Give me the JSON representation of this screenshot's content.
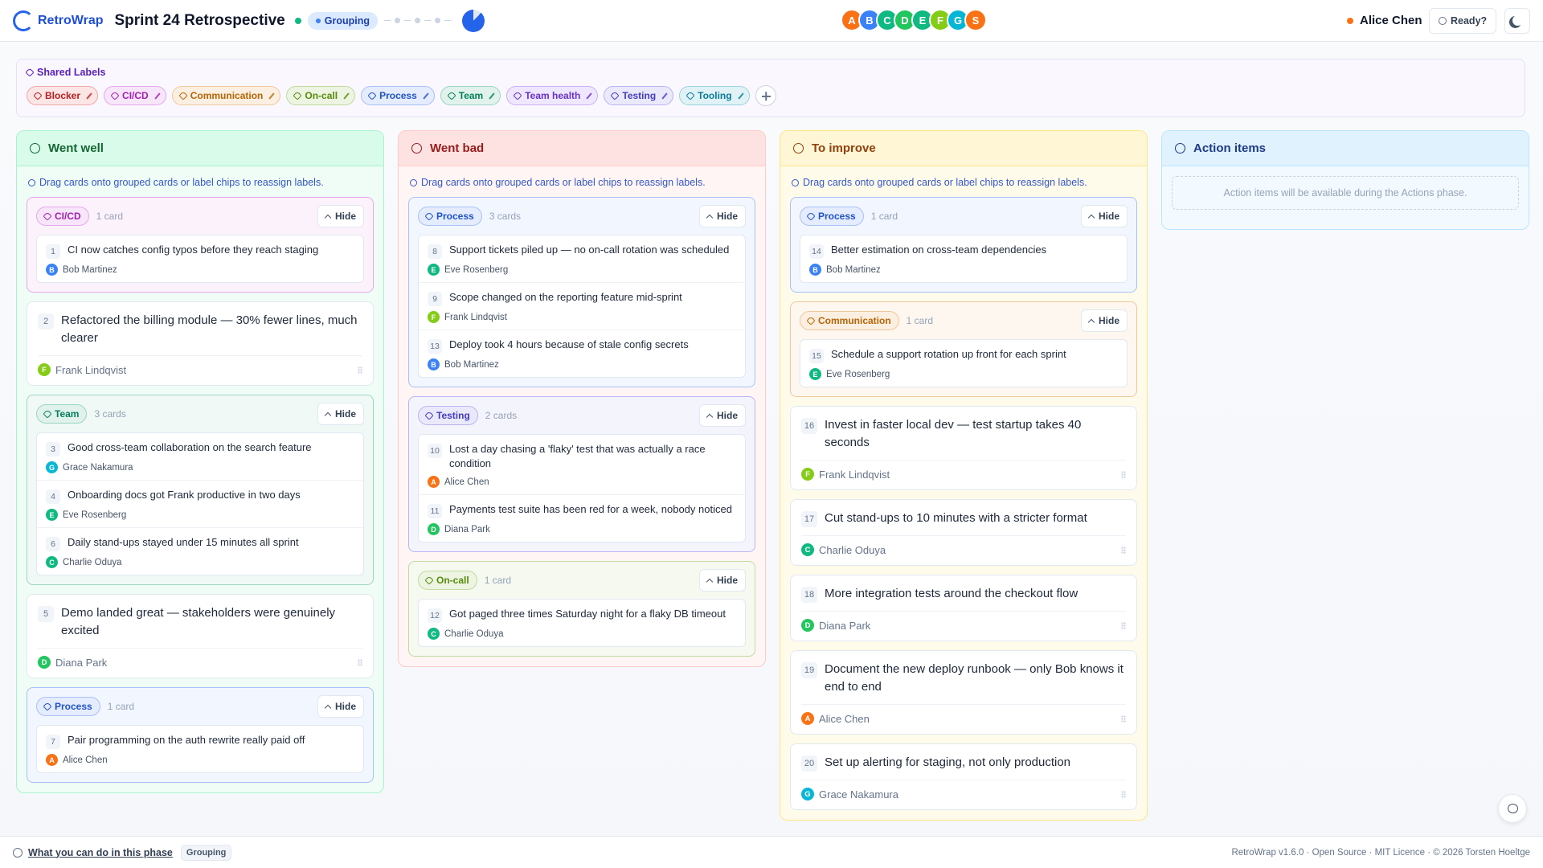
{
  "header": {
    "brand": "RetroWrap",
    "title": "Sprint 24 Retrospective",
    "phase": "Grouping",
    "avatars": [
      {
        "initial": "A",
        "color": "#f97316"
      },
      {
        "initial": "B",
        "color": "#3b82f6"
      },
      {
        "initial": "C",
        "color": "#10b981"
      },
      {
        "initial": "D",
        "color": "#22c55e"
      },
      {
        "initial": "E",
        "color": "#10b981"
      },
      {
        "initial": "F",
        "color": "#84cc16"
      },
      {
        "initial": "G",
        "color": "#06b6d4"
      },
      {
        "initial": "S",
        "color": "#f97316"
      }
    ],
    "user": "Alice Chen",
    "ready": "Ready?"
  },
  "labels": {
    "title": "Shared Labels",
    "items": [
      {
        "name": "Blocker",
        "color": "#dc2626"
      },
      {
        "name": "CI/CD",
        "color": "#c026d3"
      },
      {
        "name": "Communication",
        "color": "#d97706"
      },
      {
        "name": "On-call",
        "color": "#65a30d"
      },
      {
        "name": "Process",
        "color": "#2563eb"
      },
      {
        "name": "Team",
        "color": "#059669"
      },
      {
        "name": "Team health",
        "color": "#7c3aed"
      },
      {
        "name": "Testing",
        "color": "#4f46e5"
      },
      {
        "name": "Tooling",
        "color": "#0891b2"
      }
    ]
  },
  "columns": [
    {
      "title": "Went well",
      "hint": "Drag cards onto grouped cards or label chips to reassign labels.",
      "items": [
        {
          "label": "CI/CD",
          "color": "#c026d3",
          "count": "1 card",
          "action": "Hide",
          "cards": [
            {
              "number": 1,
              "text": "CI now catches config typos before they reach staging",
              "author": "Bob Martinez",
              "initial": "B",
              "color": "#3b82f6"
            }
          ]
        },
        {
          "number": 2,
          "text": "Refactored the billing module — 30% fewer lines, much clearer",
          "author": "Frank Lindqvist",
          "initial": "F",
          "color": "#84cc16"
        },
        {
          "label": "Team",
          "color": "#059669",
          "count": "3 cards",
          "action": "Hide",
          "cards": [
            {
              "number": 3,
              "text": "Good cross-team collaboration on the search feature",
              "author": "Grace Nakamura",
              "initial": "G",
              "color": "#06b6d4"
            },
            {
              "number": 4,
              "text": "Onboarding docs got Frank productive in two days",
              "author": "Eve Rosenberg",
              "initial": "E",
              "color": "#10b981"
            },
            {
              "number": 6,
              "text": "Daily stand-ups stayed under 15 minutes all sprint",
              "author": "Charlie Oduya",
              "initial": "C",
              "color": "#10b981"
            }
          ]
        },
        {
          "number": 5,
          "text": "Demo landed great — stakeholders were genuinely excited",
          "author": "Diana Park",
          "initial": "D",
          "color": "#22c55e"
        },
        {
          "label": "Process",
          "color": "#2563eb",
          "count": "1 card",
          "action": "Hide",
          "cards": [
            {
              "number": 7,
              "text": "Pair programming on the auth rewrite really paid off",
              "author": "Alice Chen",
              "initial": "A",
              "color": "#f97316"
            }
          ]
        }
      ]
    },
    {
      "title": "Went bad",
      "hint": "Drag cards onto grouped cards or label chips to reassign labels.",
      "items": [
        {
          "label": "Process",
          "color": "#2563eb",
          "count": "3 cards",
          "action": "Hide",
          "cards": [
            {
              "number": 8,
              "text": "Support tickets piled up — no on-call rotation was scheduled",
              "author": "Eve Rosenberg",
              "initial": "E",
              "color": "#10b981"
            },
            {
              "number": 9,
              "text": "Scope changed on the reporting feature mid-sprint",
              "author": "Frank Lindqvist",
              "initial": "F",
              "color": "#84cc16"
            },
            {
              "number": 13,
              "text": "Deploy took 4 hours because of stale config secrets",
              "author": "Bob Martinez",
              "initial": "B",
              "color": "#3b82f6"
            }
          ]
        },
        {
          "label": "Testing",
          "color": "#4f46e5",
          "count": "2 cards",
          "action": "Hide",
          "cards": [
            {
              "number": 10,
              "text": "Lost a day chasing a 'flaky' test that was actually a race condition",
              "author": "Alice Chen",
              "initial": "A",
              "color": "#f97316"
            },
            {
              "number": 11,
              "text": "Payments test suite has been red for a week, nobody noticed",
              "author": "Diana Park",
              "initial": "D",
              "color": "#22c55e"
            }
          ]
        },
        {
          "label": "On-call",
          "color": "#65a30d",
          "count": "1 card",
          "action": "Hide",
          "cards": [
            {
              "number": 12,
              "text": "Got paged three times Saturday night for a flaky DB timeout",
              "author": "Charlie Oduya",
              "initial": "C",
              "color": "#10b981"
            }
          ]
        }
      ]
    },
    {
      "title": "To improve",
      "hint": "Drag cards onto grouped cards or label chips to reassign labels.",
      "items": [
        {
          "label": "Process",
          "color": "#2563eb",
          "count": "1 card",
          "action": "Hide",
          "cards": [
            {
              "number": 14,
              "text": "Better estimation on cross-team dependencies",
              "author": "Bob Martinez",
              "initial": "B",
              "color": "#3b82f6"
            }
          ]
        },
        {
          "label": "Communication",
          "color": "#d97706",
          "count": "1 card",
          "action": "Hide",
          "cards": [
            {
              "number": 15,
              "text": "Schedule a support rotation up front for each sprint",
              "author": "Eve Rosenberg",
              "initial": "E",
              "color": "#10b981"
            }
          ]
        },
        {
          "number": 16,
          "text": "Invest in faster local dev — test startup takes 40 seconds",
          "author": "Frank Lindqvist",
          "initial": "F",
          "color": "#84cc16"
        },
        {
          "number": 17,
          "text": "Cut stand-ups to 10 minutes with a stricter format",
          "author": "Charlie Oduya",
          "initial": "C",
          "color": "#10b981"
        },
        {
          "number": 18,
          "text": "More integration tests around the checkout flow",
          "author": "Diana Park",
          "initial": "D",
          "color": "#22c55e"
        },
        {
          "number": 19,
          "text": "Document the new deploy runbook — only Bob knows it end to end",
          "author": "Alice Chen",
          "initial": "A",
          "color": "#f97316"
        },
        {
          "number": 20,
          "text": "Set up alerting for staging, not only production",
          "author": "Grace Nakamura",
          "initial": "G",
          "color": "#06b6d4"
        }
      ]
    },
    {
      "title": "Action items",
      "empty": "Action items will be available during the Actions phase."
    }
  ],
  "footer": {
    "help": "What you can do in this phase",
    "phase": "Grouping",
    "credits": "RetroWrap v1.6.0 · Open Source · MIT Licence · © 2026 Torsten Hoeltge"
  }
}
